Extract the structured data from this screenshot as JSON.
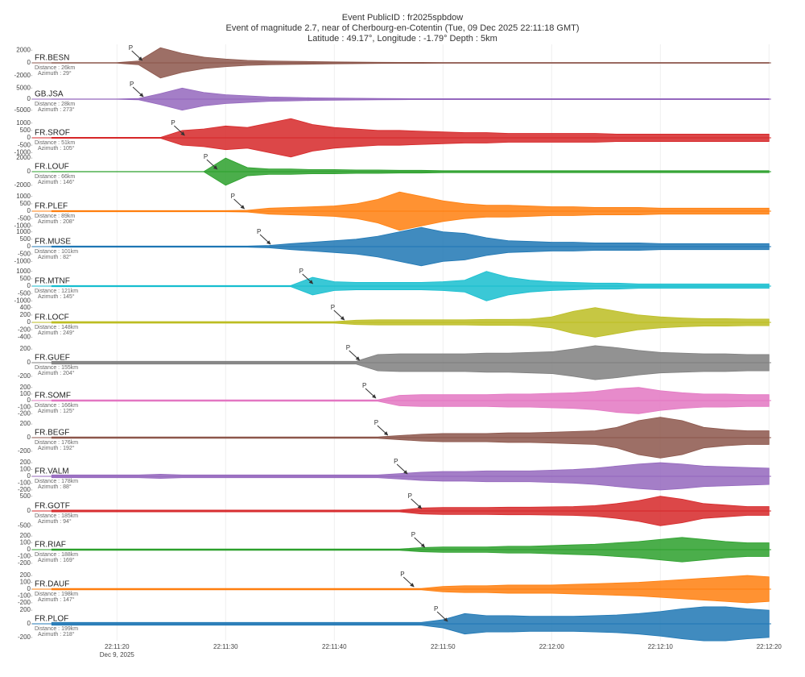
{
  "header": {
    "lines": [
      "Event PublicID : fr2025spbdow",
      "Event of magnitude 2.7, near of Cherbourg-en-Cotentin (Tue, 09 Dec 2025 22:11:18 GMT)",
      "Latitude : 49.17°, Longitude : -1.79° Depth : 5km"
    ]
  },
  "time_axis": {
    "x": [
      14,
      16,
      18,
      20,
      22,
      24,
      26,
      28,
      30,
      32,
      34,
      36,
      38,
      40,
      42,
      44,
      46,
      48,
      50,
      52,
      54,
      56,
      58,
      60,
      62,
      64,
      66,
      68,
      70,
      72,
      74,
      76,
      78,
      80
    ],
    "xlim": [
      12.2,
      80.2
    ],
    "xticks": [
      {
        "value": 20,
        "label": "22:11:20"
      },
      {
        "value": 30,
        "label": "22:11:30"
      },
      {
        "value": 40,
        "label": "22:11:40"
      },
      {
        "value": 50,
        "label": "22:11:50"
      },
      {
        "value": 60,
        "label": "22:12:00"
      },
      {
        "value": 70,
        "label": "22:12:10"
      },
      {
        "value": 80,
        "label": "22:12:20"
      }
    ],
    "date": "Dec 9, 2025",
    "grid": true
  },
  "chart_data": [
    {
      "type": "line",
      "name": "FR.BESN",
      "distance": "Distance : 26km",
      "azimuth": "Azimuth : 29°",
      "color": "#8c564b",
      "ylim": [
        -2800,
        2800
      ],
      "yticks": [
        -2000,
        0,
        2000
      ],
      "pick_label": "P",
      "pick": 22.4,
      "values": [
        50,
        50,
        50,
        50,
        300,
        2400,
        1500,
        900,
        600,
        400,
        300,
        250,
        200,
        150,
        120,
        100,
        80,
        70,
        60,
        60,
        60,
        60,
        60,
        60,
        60,
        60,
        60,
        60,
        60,
        60,
        60,
        60,
        60,
        60
      ]
    },
    {
      "type": "line",
      "name": "GB.JSA",
      "distance": "Distance : 28km",
      "azimuth": "Azimuth : 273°",
      "color": "#9467bd",
      "ylim": [
        -8000,
        8000
      ],
      "yticks": [
        -5000,
        0,
        5000
      ],
      "pick_label": "P",
      "pick": 22.5,
      "values": [
        100,
        100,
        100,
        100,
        300,
        2500,
        5000,
        3000,
        2000,
        1500,
        1000,
        800,
        600,
        500,
        400,
        300,
        250,
        200,
        200,
        200,
        200,
        200,
        200,
        200,
        200,
        200,
        200,
        200,
        200,
        200,
        200,
        200,
        200,
        200
      ]
    },
    {
      "type": "line",
      "name": "FR.SROF",
      "distance": "Distance : 51km",
      "azimuth": "Azimuth : 105°",
      "color": "#d62728",
      "ylim": [
        -1200,
        1200
      ],
      "yticks": [
        -1000,
        -500,
        0,
        500,
        1000
      ],
      "pick_label": "P",
      "pick": 26.3,
      "values": [
        30,
        30,
        30,
        30,
        30,
        30,
        500,
        600,
        800,
        700,
        1000,
        1300,
        900,
        700,
        600,
        500,
        500,
        450,
        400,
        350,
        350,
        300,
        300,
        300,
        300,
        300,
        250,
        250,
        250,
        250,
        250,
        250,
        250,
        250
      ]
    },
    {
      "type": "line",
      "name": "FR.LOUF",
      "distance": "Distance : 66km",
      "azimuth": "Azimuth : 146°",
      "color": "#2ca02c",
      "ylim": [
        -2600,
        2600
      ],
      "yticks": [
        -2000,
        0,
        2000
      ],
      "pick_label": "P",
      "pick": 29.3,
      "values": [
        30,
        30,
        30,
        30,
        30,
        30,
        30,
        30,
        2000,
        600,
        400,
        400,
        300,
        300,
        250,
        250,
        200,
        200,
        150,
        150,
        150,
        150,
        150,
        150,
        150,
        150,
        150,
        150,
        150,
        150,
        150,
        150,
        150,
        150
      ]
    },
    {
      "type": "line",
      "name": "FR.PLEF",
      "distance": "Distance : 89km",
      "azimuth": "Azimuth : 208°",
      "color": "#ff7f0e",
      "ylim": [
        -1200,
        1200
      ],
      "yticks": [
        -1000,
        -500,
        0,
        500,
        1000
      ],
      "pick_label": "P",
      "pick": 31.8,
      "values": [
        40,
        40,
        40,
        40,
        40,
        40,
        40,
        40,
        40,
        60,
        200,
        250,
        300,
        350,
        500,
        800,
        1300,
        1000,
        700,
        500,
        400,
        400,
        350,
        300,
        300,
        250,
        250,
        250,
        200,
        200,
        200,
        200,
        200,
        200
      ]
    },
    {
      "type": "line",
      "name": "FR.MUSE",
      "distance": "Distance : 101km",
      "azimuth": "Azimuth : 82°",
      "color": "#1f77b4",
      "ylim": [
        -1200,
        1200
      ],
      "yticks": [
        -1000,
        -500,
        0,
        500,
        1000
      ],
      "pick_label": "P",
      "pick": 34.2,
      "values": [
        40,
        40,
        40,
        40,
        40,
        40,
        40,
        40,
        40,
        40,
        80,
        200,
        300,
        400,
        500,
        700,
        1000,
        1300,
        1000,
        900,
        600,
        400,
        350,
        300,
        300,
        250,
        250,
        250,
        200,
        200,
        200,
        200,
        200,
        200
      ]
    },
    {
      "type": "line",
      "name": "FR.MTNF",
      "distance": "Distance : 121km",
      "azimuth": "Azimuth : 145°",
      "color": "#17becf",
      "ylim": [
        -1200,
        1200
      ],
      "yticks": [
        -1000,
        -500,
        0,
        500,
        1000
      ],
      "pick_label": "P",
      "pick": 38.1,
      "values": [
        40,
        40,
        40,
        40,
        40,
        40,
        40,
        40,
        40,
        40,
        40,
        40,
        600,
        300,
        250,
        250,
        250,
        250,
        300,
        400,
        1000,
        600,
        400,
        300,
        250,
        200,
        200,
        150,
        150,
        150,
        150,
        150,
        150,
        150
      ]
    },
    {
      "type": "line",
      "name": "FR.LOCF",
      "distance": "Distance : 148km",
      "azimuth": "Azimuth : 249°",
      "color": "#bcbd22",
      "ylim": [
        -480,
        480
      ],
      "yticks": [
        -400,
        -200,
        0,
        200,
        400
      ],
      "pick_label": "P",
      "pick": 41.0,
      "values": [
        20,
        20,
        20,
        20,
        20,
        20,
        20,
        20,
        20,
        20,
        20,
        20,
        20,
        20,
        60,
        70,
        70,
        70,
        70,
        70,
        80,
        80,
        90,
        150,
        300,
        400,
        300,
        200,
        150,
        120,
        100,
        100,
        90,
        90
      ]
    },
    {
      "type": "line",
      "name": "FR.GUEF",
      "distance": "Distance : 155km",
      "azimuth": "Azimuth : 204°",
      "color": "#7f7f7f",
      "ylim": [
        -260,
        260
      ],
      "yticks": [
        -200,
        0,
        200
      ],
      "pick_label": "P",
      "pick": 42.4,
      "values": [
        20,
        20,
        20,
        20,
        20,
        20,
        20,
        20,
        20,
        20,
        20,
        20,
        20,
        20,
        20,
        120,
        130,
        130,
        130,
        130,
        140,
        140,
        150,
        160,
        200,
        250,
        220,
        180,
        150,
        140,
        130,
        130,
        120,
        120
      ]
    },
    {
      "type": "line",
      "name": "FR.SOMF",
      "distance": "Distance : 166km",
      "azimuth": "Azimuth : 125°",
      "color": "#e377c2",
      "ylim": [
        -270,
        270
      ],
      "yticks": [
        -200,
        -100,
        0,
        100,
        200
      ],
      "pick_label": "P",
      "pick": 43.9,
      "values": [
        10,
        10,
        10,
        10,
        10,
        10,
        10,
        10,
        10,
        10,
        10,
        10,
        10,
        10,
        10,
        10,
        80,
        90,
        90,
        90,
        90,
        100,
        100,
        110,
        120,
        140,
        180,
        200,
        150,
        120,
        100,
        100,
        90,
        90
      ]
    },
    {
      "type": "line",
      "name": "FR.BEGF",
      "distance": "Distance : 176km",
      "azimuth": "Azimuth : 192°",
      "color": "#8c564b",
      "ylim": [
        -260,
        260
      ],
      "yticks": [
        -200,
        0,
        200
      ],
      "pick_label": "P",
      "pick": 45.0,
      "values": [
        10,
        10,
        10,
        10,
        10,
        10,
        10,
        10,
        10,
        10,
        10,
        10,
        10,
        10,
        10,
        10,
        30,
        50,
        60,
        60,
        60,
        70,
        70,
        80,
        90,
        100,
        150,
        250,
        300,
        250,
        150,
        120,
        100,
        100
      ]
    },
    {
      "type": "line",
      "name": "FR.VALM",
      "distance": "Distance : 178km",
      "azimuth": "Azimuth : 88°",
      "color": "#9467bd",
      "ylim": [
        -260,
        260
      ],
      "yticks": [
        -200,
        -100,
        0,
        100,
        200
      ],
      "pick_label": "P",
      "pick": 46.8,
      "values": [
        20,
        20,
        20,
        20,
        20,
        30,
        20,
        20,
        20,
        20,
        20,
        20,
        20,
        20,
        20,
        20,
        40,
        60,
        70,
        70,
        80,
        80,
        80,
        90,
        100,
        120,
        150,
        180,
        200,
        180,
        150,
        140,
        130,
        120
      ]
    },
    {
      "type": "line",
      "name": "FR.GOTF",
      "distance": "Distance : 185km",
      "azimuth": "Azimuth : 94°",
      "color": "#d62728",
      "ylim": [
        -600,
        600
      ],
      "yticks": [
        -500,
        0,
        500
      ],
      "pick_label": "P",
      "pick": 48.1,
      "values": [
        30,
        30,
        30,
        30,
        30,
        30,
        30,
        30,
        30,
        30,
        30,
        30,
        30,
        30,
        30,
        30,
        30,
        100,
        120,
        120,
        120,
        130,
        130,
        140,
        150,
        180,
        250,
        350,
        500,
        400,
        250,
        200,
        150,
        150
      ]
    },
    {
      "type": "line",
      "name": "FR.RIAF",
      "distance": "Distance : 188km",
      "azimuth": "Azimuth : 169°",
      "color": "#2ca02c",
      "ylim": [
        -260,
        260
      ],
      "yticks": [
        -200,
        -100,
        0,
        100,
        200
      ],
      "pick_label": "P",
      "pick": 48.4,
      "values": [
        10,
        10,
        10,
        10,
        10,
        10,
        10,
        10,
        10,
        10,
        10,
        10,
        10,
        10,
        10,
        10,
        10,
        30,
        40,
        40,
        40,
        50,
        50,
        60,
        70,
        80,
        100,
        120,
        150,
        180,
        150,
        120,
        100,
        100
      ]
    },
    {
      "type": "line",
      "name": "FR.DAUF",
      "distance": "Distance : 198km",
      "azimuth": "Azimuth : 147°",
      "color": "#ff7f0e",
      "ylim": [
        -260,
        260
      ],
      "yticks": [
        -200,
        -100,
        0,
        100,
        200
      ],
      "pick_label": "P",
      "pick": 47.4,
      "values": [
        10,
        10,
        10,
        10,
        10,
        10,
        10,
        10,
        10,
        10,
        10,
        10,
        10,
        10,
        10,
        10,
        10,
        10,
        40,
        50,
        50,
        60,
        60,
        60,
        70,
        80,
        90,
        100,
        120,
        140,
        160,
        180,
        200,
        180
      ]
    },
    {
      "type": "line",
      "name": "FR.PLOF",
      "distance": "Distance : 199km",
      "azimuth": "Azimuth : 218°",
      "color": "#1f77b4",
      "ylim": [
        -260,
        260
      ],
      "yticks": [
        -200,
        0,
        200
      ],
      "pick_label": "P",
      "pick": 50.5,
      "values": [
        20,
        20,
        20,
        20,
        20,
        20,
        20,
        20,
        20,
        20,
        20,
        20,
        20,
        20,
        20,
        20,
        20,
        20,
        60,
        150,
        120,
        120,
        110,
        110,
        110,
        120,
        130,
        150,
        180,
        220,
        250,
        250,
        220,
        200
      ]
    }
  ]
}
